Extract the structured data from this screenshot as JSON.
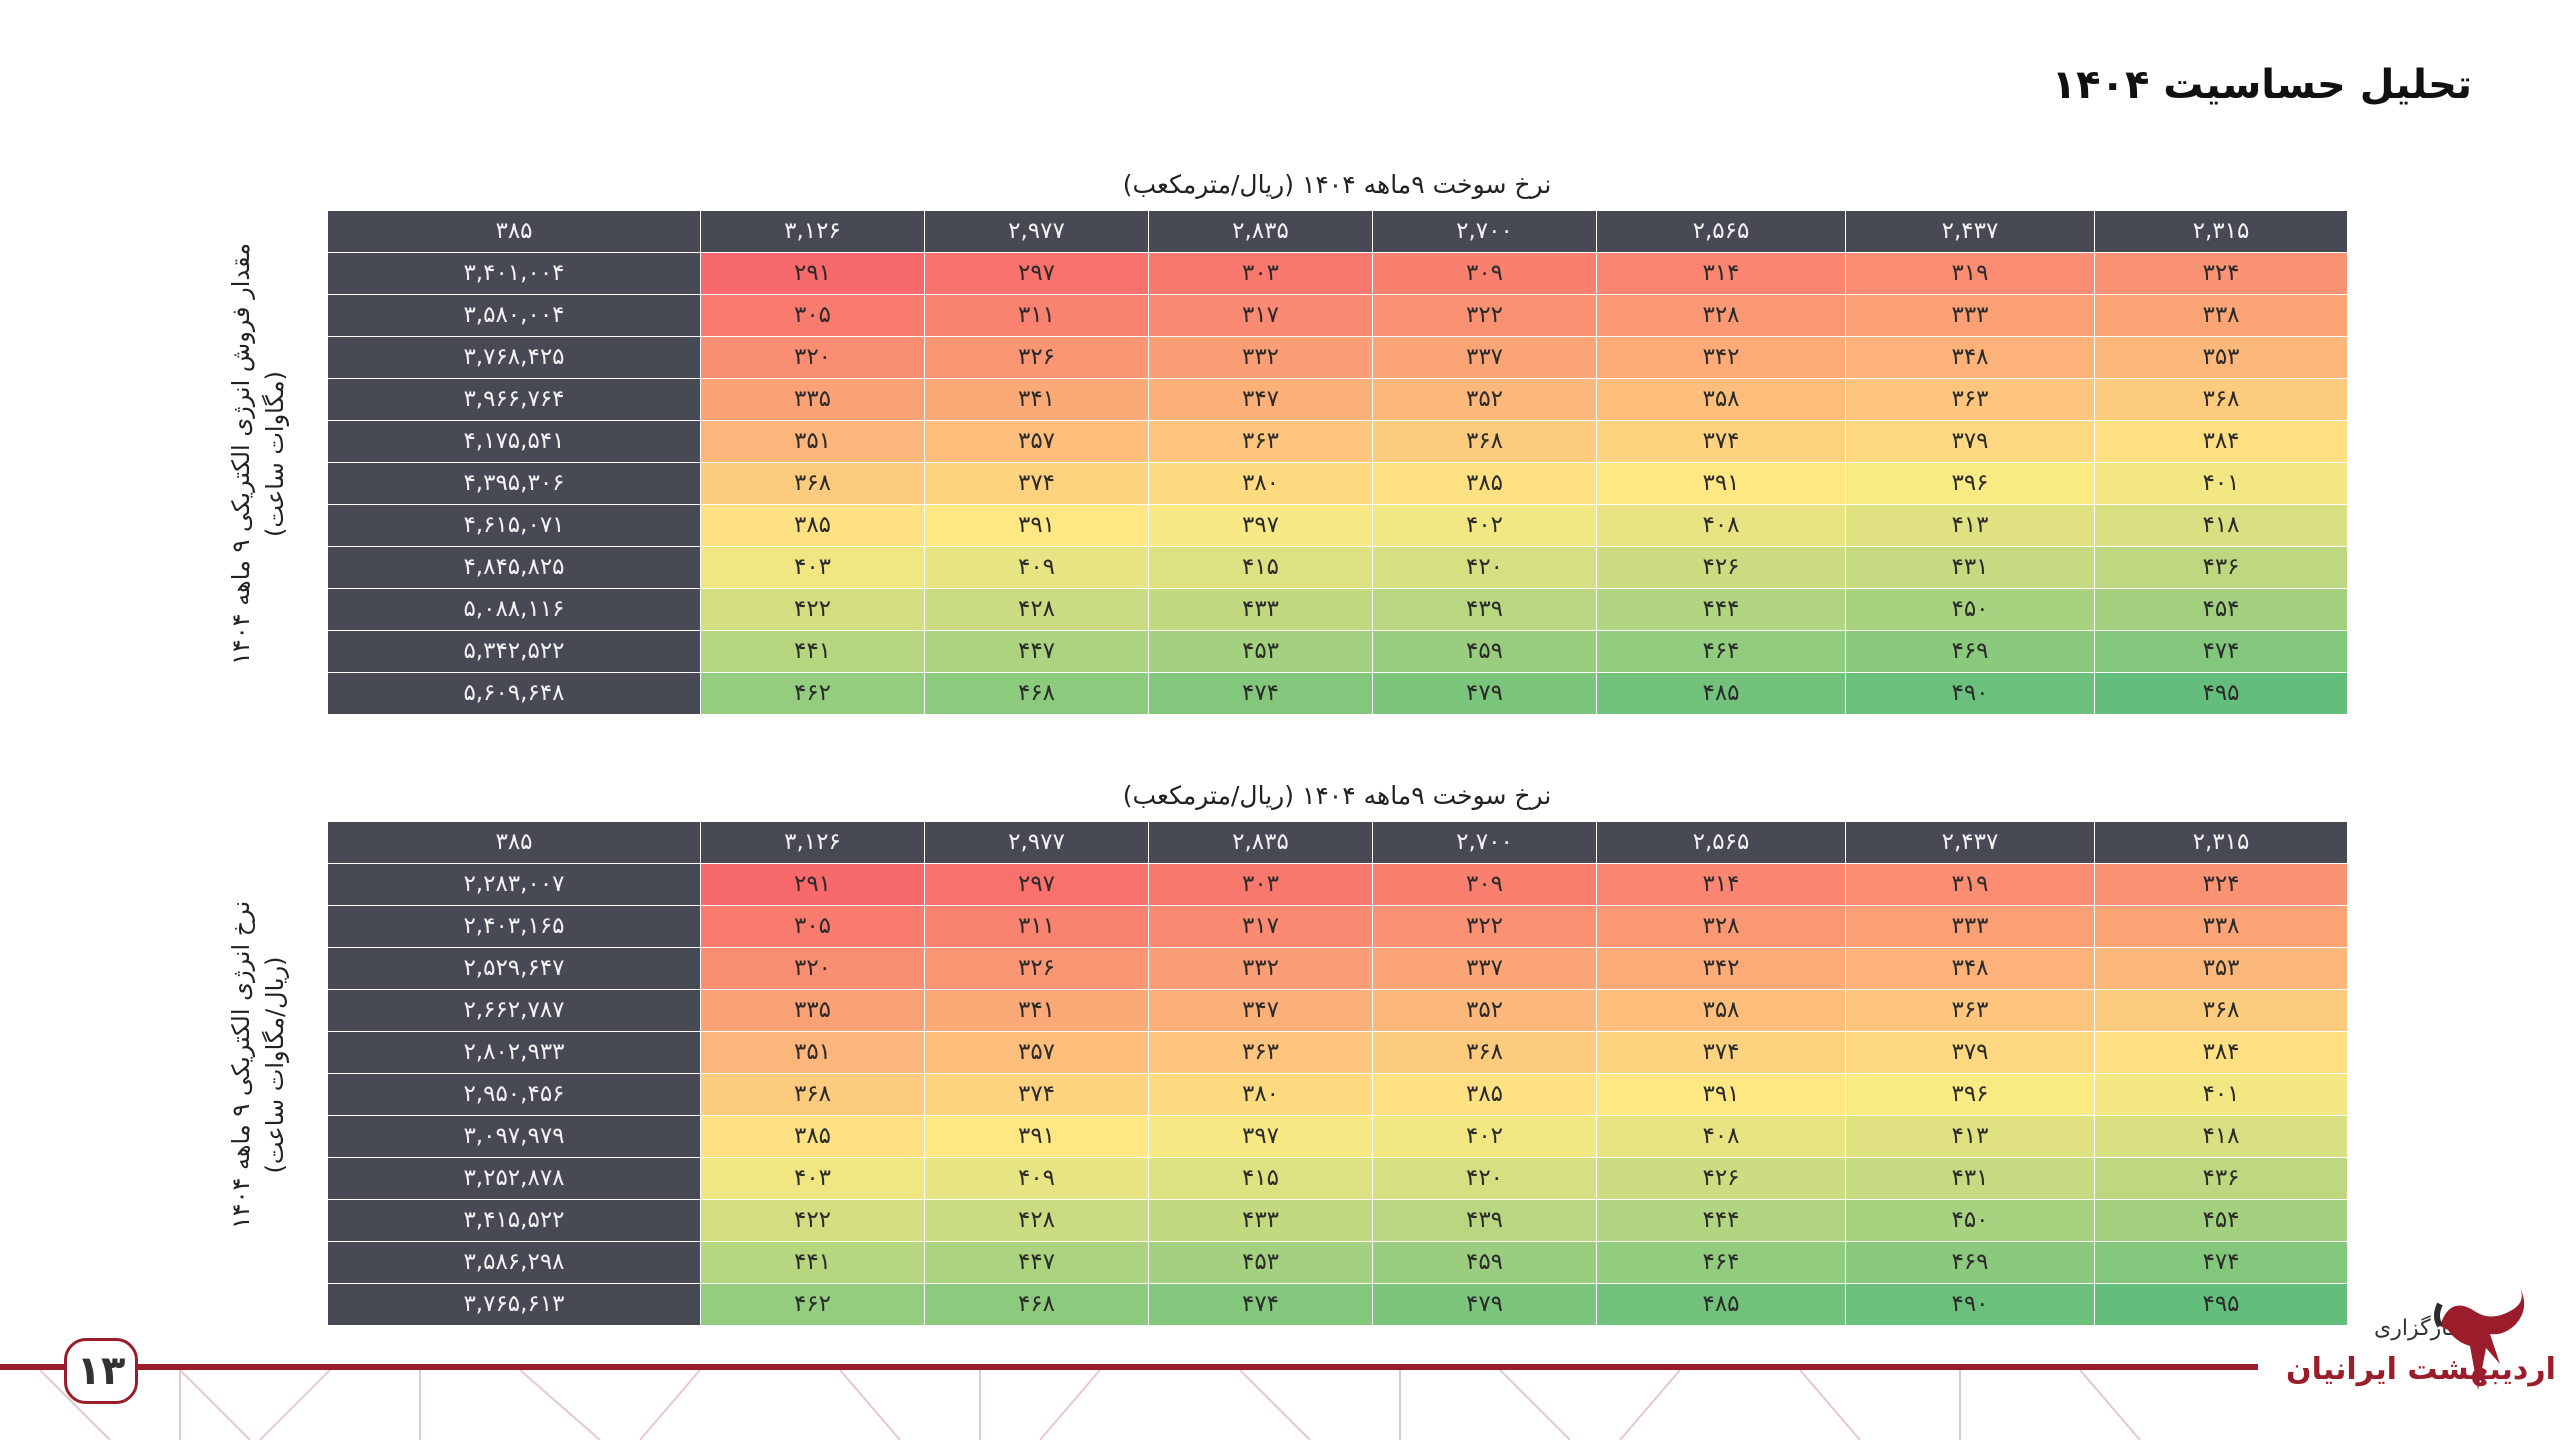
{
  "page_title": "تحلیل حساسیت ۱۴۰۴",
  "fuel_caption": "نرخ سوخت ۹ماهه ۱۴۰۴ (ریال/مترمکعب)",
  "corner_value": "۳۸۵",
  "fuel_rates": [
    "۳,۱۲۶",
    "۲,۹۷۷",
    "۲,۸۳۵",
    "۲,۷۰۰",
    "۲,۵۶۵",
    "۲,۴۳۷",
    "۲,۳۱۵"
  ],
  "table1": {
    "side_label_line1": "مقدار فروش انرژی الکتریکی ۹ ماهه ۱۴۰۴",
    "side_label_line2": "(مگاوات ساعت)",
    "row_labels": [
      "۳,۴۰۱,۰۰۴",
      "۳,۵۸۰,۰۰۴",
      "۳,۷۶۸,۴۲۵",
      "۳,۹۶۶,۷۶۴",
      "۴,۱۷۵,۵۴۱",
      "۴,۳۹۵,۳۰۶",
      "۴,۶۱۵,۰۷۱",
      "۴,۸۴۵,۸۲۵",
      "۵,۰۸۸,۱۱۶",
      "۵,۳۴۲,۵۲۲",
      "۵,۶۰۹,۶۴۸"
    ]
  },
  "table2": {
    "side_label_line1": "نرخ انرژی الکتریکی ۹ ماهه ۱۴۰۴",
    "side_label_line2": "(ریال/مگاوات ساعت)",
    "row_labels": [
      "۲,۲۸۳,۰۰۷",
      "۲,۴۰۳,۱۶۵",
      "۲,۵۲۹,۶۴۷",
      "۲,۶۶۲,۷۸۷",
      "۲,۸۰۲,۹۳۳",
      "۲,۹۵۰,۴۵۶",
      "۳,۰۹۷,۹۷۹",
      "۳,۲۵۲,۸۷۸",
      "۳,۴۱۵,۵۲۲",
      "۳,۵۸۶,۲۹۸",
      "۳,۷۶۵,۶۱۳"
    ]
  },
  "matrix": [
    [
      "۲۹۱",
      "۲۹۷",
      "۳۰۳",
      "۳۰۹",
      "۳۱۴",
      "۳۱۹",
      "۳۲۴"
    ],
    [
      "۳۰۵",
      "۳۱۱",
      "۳۱۷",
      "۳۲۲",
      "۳۲۸",
      "۳۳۳",
      "۳۳۸"
    ],
    [
      "۳۲۰",
      "۳۲۶",
      "۳۳۲",
      "۳۳۷",
      "۳۴۲",
      "۳۴۸",
      "۳۵۳"
    ],
    [
      "۳۳۵",
      "۳۴۱",
      "۳۴۷",
      "۳۵۲",
      "۳۵۸",
      "۳۶۳",
      "۳۶۸"
    ],
    [
      "۳۵۱",
      "۳۵۷",
      "۳۶۳",
      "۳۶۸",
      "۳۷۴",
      "۳۷۹",
      "۳۸۴"
    ],
    [
      "۳۶۸",
      "۳۷۴",
      "۳۸۰",
      "۳۸۵",
      "۳۹۱",
      "۳۹۶",
      "۴۰۱"
    ],
    [
      "۳۸۵",
      "۳۹۱",
      "۳۹۷",
      "۴۰۲",
      "۴۰۸",
      "۴۱۳",
      "۴۱۸"
    ],
    [
      "۴۰۳",
      "۴۰۹",
      "۴۱۵",
      "۴۲۰",
      "۴۲۶",
      "۴۳۱",
      "۴۳۶"
    ],
    [
      "۴۲۲",
      "۴۲۸",
      "۴۳۳",
      "۴۳۹",
      "۴۴۴",
      "۴۵۰",
      "۴۵۴"
    ],
    [
      "۴۴۱",
      "۴۴۷",
      "۴۵۳",
      "۴۵۹",
      "۴۶۴",
      "۴۶۹",
      "۴۷۴"
    ],
    [
      "۴۶۲",
      "۴۶۸",
      "۴۷۴",
      "۴۷۹",
      "۴۸۵",
      "۴۹۰",
      "۴۹۵"
    ]
  ],
  "heat_colors": {
    "low": "#f8696b",
    "mid": "#ffeb84",
    "high": "#63be7b",
    "header": "#474a54"
  },
  "page_number": "۱۳",
  "logo": {
    "small_text": "کارگزاری",
    "main_text": "اردیبهشت ایرانیان"
  }
}
